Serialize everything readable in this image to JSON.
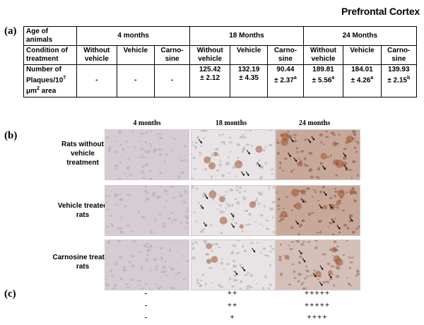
{
  "title": "Prefrontal Cortex",
  "panel_labels": {
    "a": "(a)",
    "b": "(b)",
    "c": "(c)"
  },
  "table": {
    "row1": {
      "label_1": "Age of",
      "label_2": "animals",
      "g1": "4 months",
      "g2": "18 Months",
      "g3": "24 Months"
    },
    "row2": {
      "label_1": "Condition of",
      "label_2": "treatment",
      "cols": [
        {
          "l1": "Without",
          "l2": "vehicle"
        },
        {
          "l1": "Vehicle",
          "l2": ""
        },
        {
          "l1": "Carno-",
          "l2": "sine"
        },
        {
          "l1": "Without",
          "l2": "vehicle"
        },
        {
          "l1": "Vehicle",
          "l2": ""
        },
        {
          "l1": "Carno-",
          "l2": "sine"
        },
        {
          "l1": "Without",
          "l2": "vehicle"
        },
        {
          "l1": "Vehicle",
          "l2": ""
        },
        {
          "l1": "Carno-",
          "l2": "sine"
        }
      ]
    },
    "row3": {
      "label_1": "Number of",
      "label_2a": "Plaques/10",
      "label_2sup": "7",
      "label_3a": "μm",
      "label_3sup": "2",
      "label_3b": " area",
      "cols": [
        {
          "v": "-",
          "e": "",
          "s": ""
        },
        {
          "v": "-",
          "e": "",
          "s": ""
        },
        {
          "v": "-",
          "e": "",
          "s": ""
        },
        {
          "v": "125.42",
          "e": "± 2.12",
          "s": ""
        },
        {
          "v": "132.19",
          "e": "± 4.35",
          "s": ""
        },
        {
          "v": "90.44",
          "e": "± 2.37",
          "s": "a"
        },
        {
          "v": "189.81",
          "e": "± 5.56",
          "s": "a"
        },
        {
          "v": "184.01",
          "e": "± 4.26",
          "s": "a"
        },
        {
          "v": "139.93",
          "e": "± 2.15",
          "s": "b"
        }
      ]
    }
  },
  "panel_b": {
    "columns": [
      "4 months",
      "18 months",
      "24 months"
    ],
    "rows": [
      {
        "label_1": "Rats without",
        "label_2": "vehicle",
        "label_3": "treatment"
      },
      {
        "label_1": "Vehicle treated",
        "label_2": "rats",
        "label_3": ""
      },
      {
        "label_1": "Carnosine treated",
        "label_2": "rats",
        "label_3": ""
      }
    ]
  },
  "panel_c": {
    "rows": [
      [
        "-",
        "++",
        "+++++"
      ],
      [
        "-",
        "++",
        "+++++"
      ],
      [
        "-",
        "+",
        "++++"
      ]
    ]
  },
  "colors": {
    "tissue_light": "#e8e4e6",
    "tissue_purple": "#d6ccd4",
    "plaque_brown": "#a0522d"
  }
}
